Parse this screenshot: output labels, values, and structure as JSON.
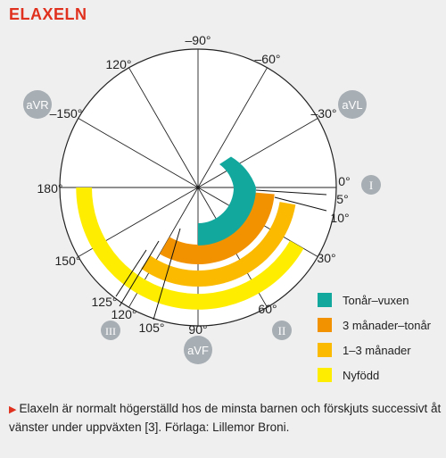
{
  "title": "ELAXELN",
  "colors": {
    "accent": "#e0301e",
    "badge": "#a7aeb4",
    "tonar_vuxen": "#13a89e",
    "tre_man_tonar": "#f39200",
    "ett_tre_man": "#fbba00",
    "nyfodd": "#ffed00"
  },
  "angle_labels": {
    "neg90": "–90°",
    "neg60": "–60°",
    "neg30": "–30°",
    "neg150": "–150°",
    "a0": "0°",
    "a5": "5°",
    "a10": "10°",
    "a30": "30°",
    "a60": "60°",
    "a90": "90°",
    "a105": "105°",
    "a120": "120°",
    "a120b": "120°",
    "a125": "125°",
    "a150": "150°",
    "a180": "180°"
  },
  "leads": {
    "aVR": "aVR",
    "aVL": "aVL",
    "aVF": "aVF",
    "I": "I",
    "II": "II",
    "III": "III"
  },
  "axis_ranges": [
    {
      "name": "Tonår–vuxen",
      "from_deg": 0,
      "to_deg": 90,
      "color": "#13a89e"
    },
    {
      "name": "3 månader–tonår",
      "from_deg": 5,
      "to_deg": 120,
      "color": "#f39200"
    },
    {
      "name": "1–3 månader",
      "from_deg": 10,
      "to_deg": 125,
      "color": "#fbba00"
    },
    {
      "name": "Nyfödd",
      "from_deg": 30,
      "to_deg": 180,
      "color": "#ffed00"
    }
  ],
  "legend": [
    {
      "label": "Tonår–vuxen",
      "color": "#13a89e"
    },
    {
      "label": "3 månader–tonår",
      "color": "#f39200"
    },
    {
      "label": "1–3 månader",
      "color": "#fbba00"
    },
    {
      "label": "Nyfödd",
      "color": "#ffed00"
    }
  ],
  "caption": "Elaxeln är normalt högerställd hos de minsta barnen och förskjuts successivt åt vänster under uppväxten [3]. Förlaga: Lillemor Broni."
}
